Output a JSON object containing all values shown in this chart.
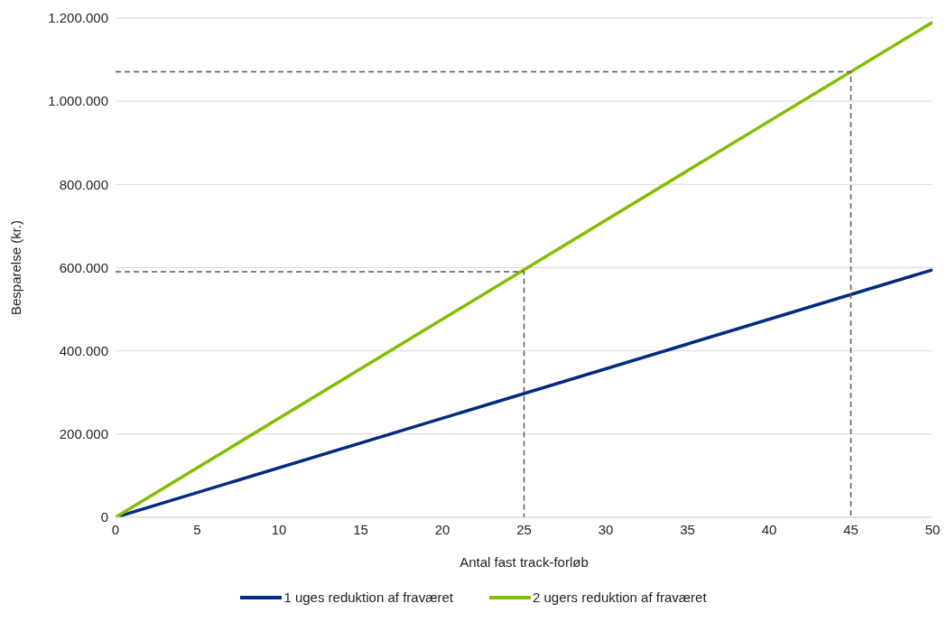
{
  "chart_data": {
    "type": "line",
    "xlabel": "Antal fast track-forløb",
    "ylabel": "Besparelse (kr.)",
    "xlim": [
      0,
      50
    ],
    "xticks": [
      0,
      5,
      10,
      15,
      20,
      25,
      30,
      35,
      40,
      45,
      50
    ],
    "ylim": [
      0,
      1200000
    ],
    "yticks": [
      0,
      {
        "value": 200000,
        "label": "200.000"
      },
      {
        "value": 400000,
        "label": "400.000"
      },
      {
        "value": 600000,
        "label": "600.000"
      },
      {
        "value": 800000,
        "label": "800.000"
      },
      {
        "value": 1000000,
        "label": "1.000.000"
      },
      {
        "value": 1200000,
        "label": "1.200.000"
      }
    ],
    "grid": "y",
    "legend": "bottom",
    "marker": "none",
    "line_style": "solid",
    "series": [
      {
        "name": "1 uges reduktion af fraværet",
        "color": "#002b7f",
        "x": [
          0,
          50
        ],
        "values": [
          0,
          595000
        ]
      },
      {
        "name": "2 ugers reduktion af fraværet",
        "color": "#84bd00",
        "x": [
          0,
          50
        ],
        "values": [
          0,
          1190000
        ]
      },
      {
        "color": "#595959",
        "line_style": "dashed",
        "x": [
          0,
          25,
          25
        ],
        "values": [
          590000,
          590000,
          0
        ]
      },
      {
        "color": "#595959",
        "line_style": "dashed",
        "x": [
          0,
          45,
          45
        ],
        "values": [
          1071000,
          1071000,
          0
        ]
      }
    ]
  }
}
